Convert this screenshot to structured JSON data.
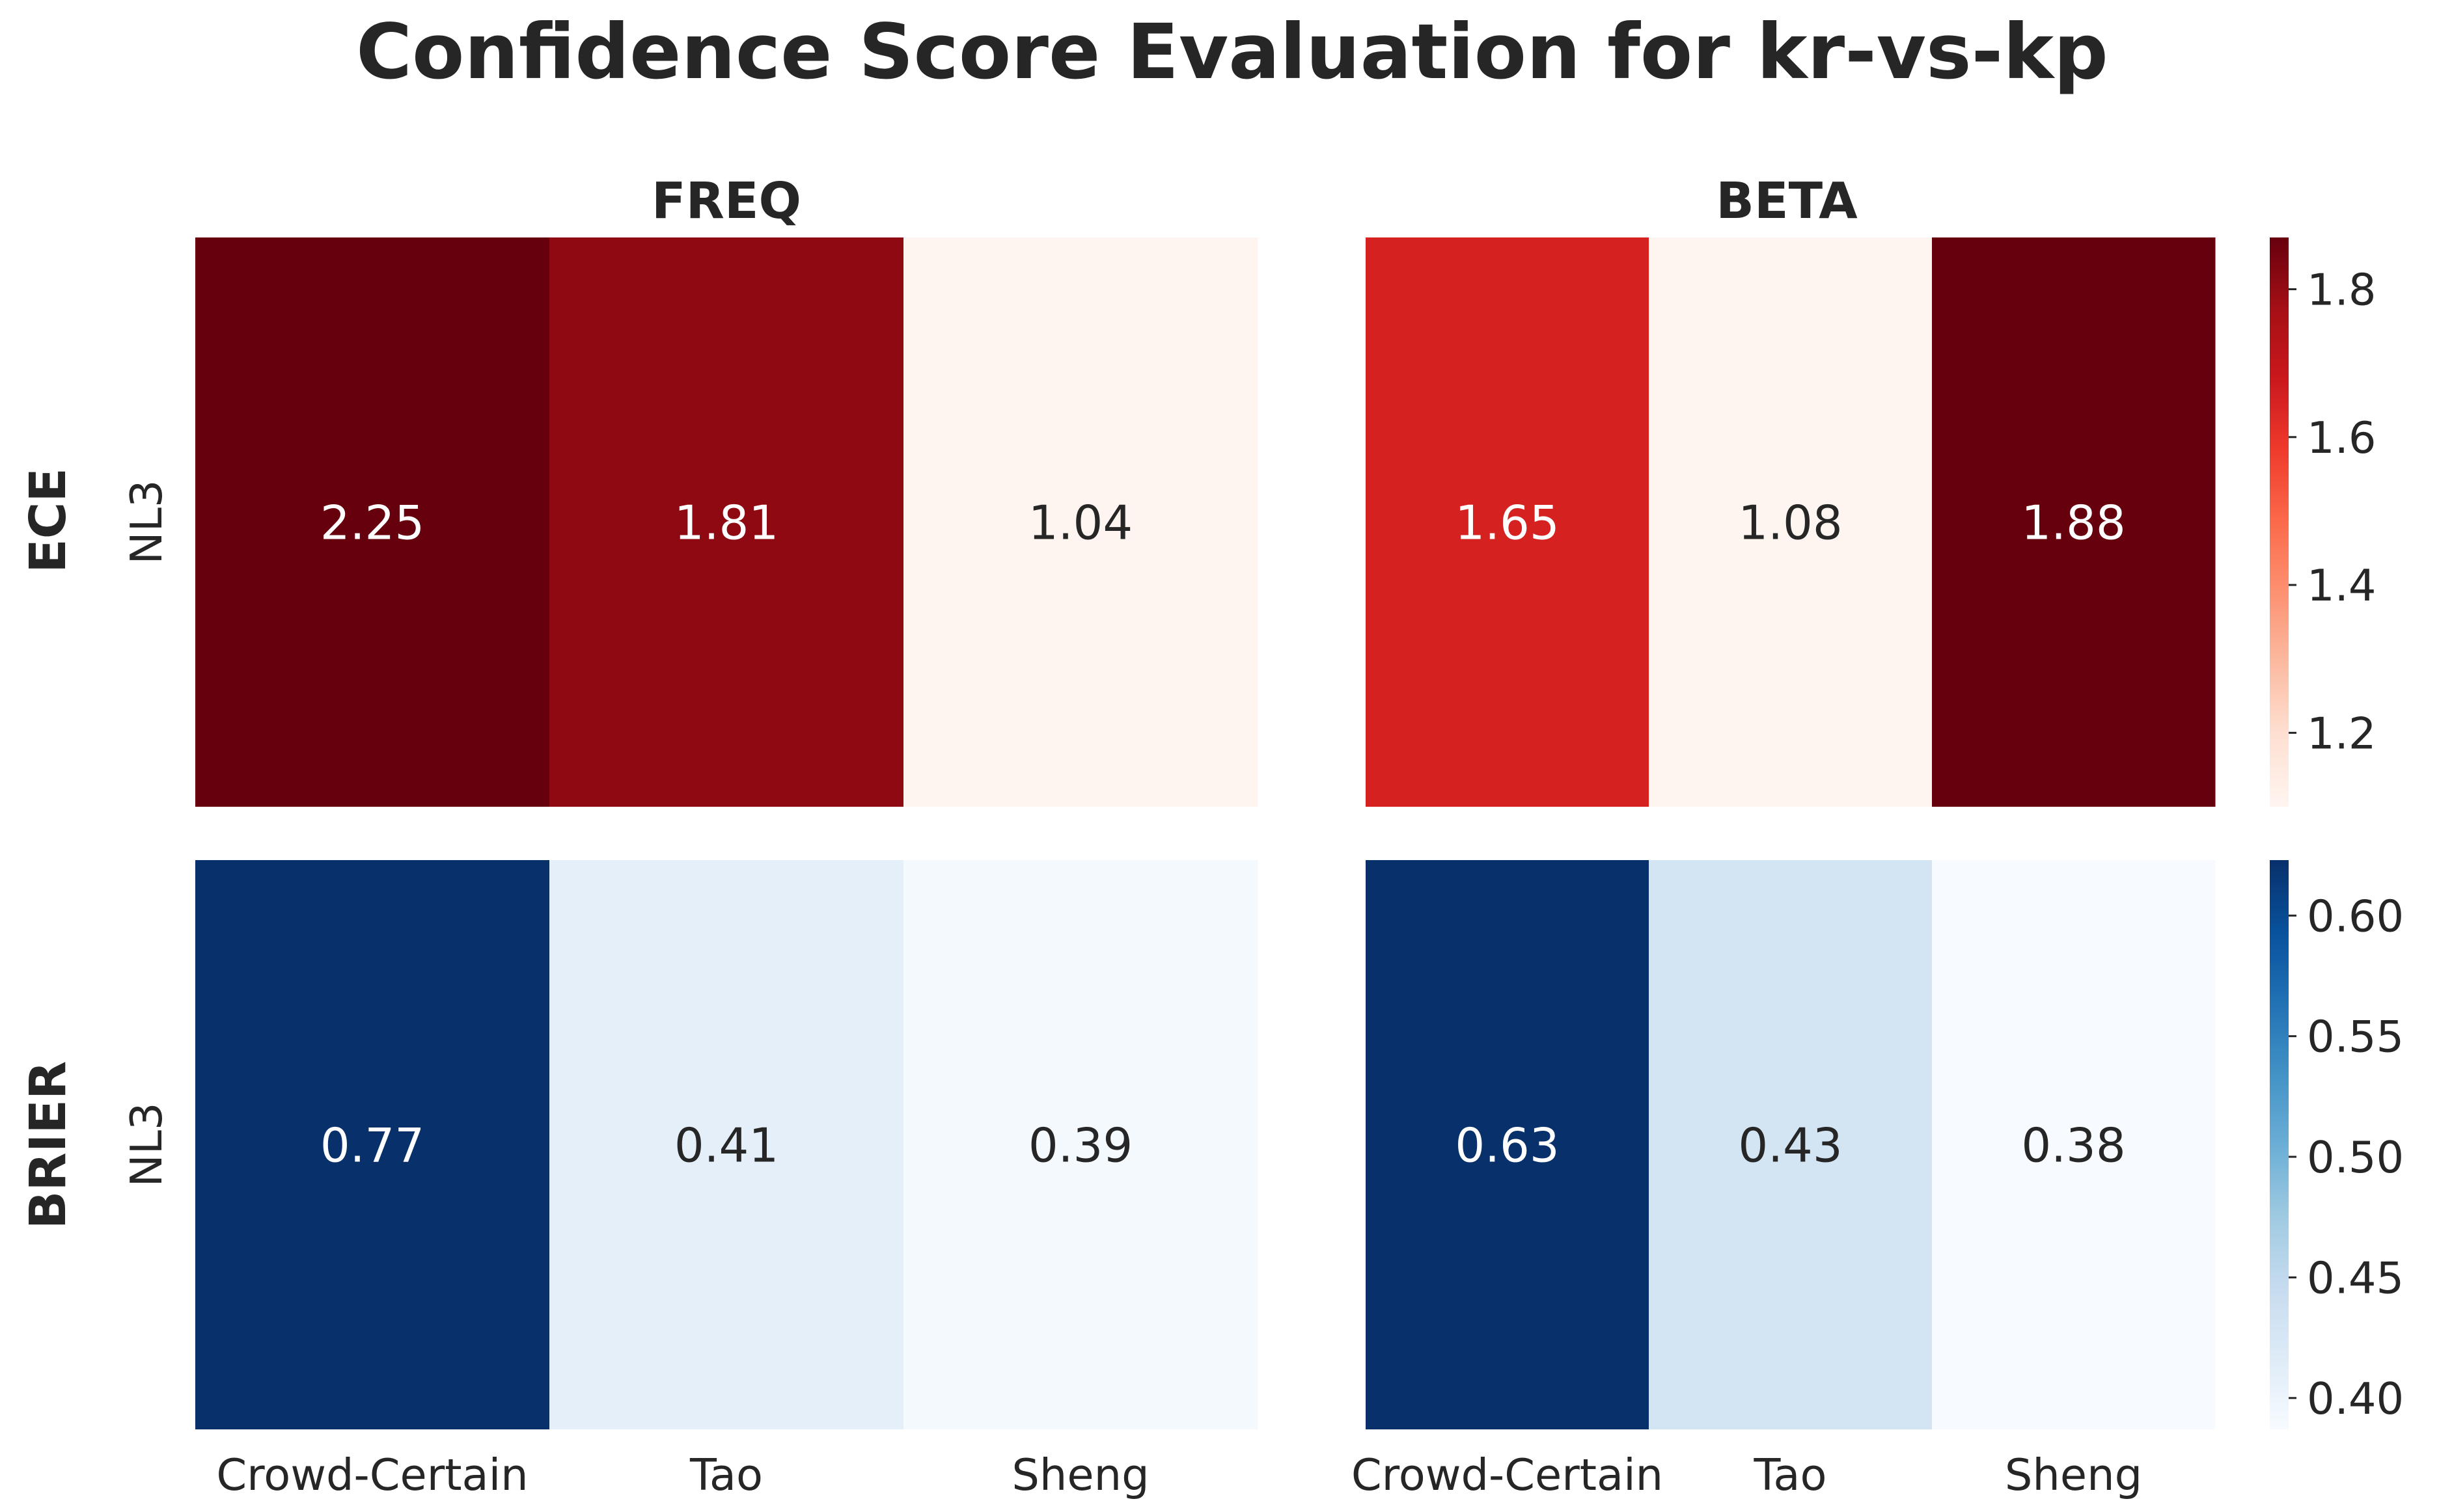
{
  "chart_data": {
    "type": "heatmap",
    "title": "Confidence Score Evaluation for kr-vs-kp",
    "columns": [
      "FREQ",
      "BETA"
    ],
    "rows": [
      "ECE",
      "BRIER"
    ],
    "y_tick": "NL3",
    "categories": [
      "Crowd-Certain",
      "Tao",
      "Sheng"
    ],
    "panels": [
      {
        "row": "ECE",
        "column": "FREQ",
        "cmap": "Reds",
        "values": [
          2.25,
          1.81,
          1.04
        ],
        "labels": [
          "2.25",
          "1.81",
          "1.04"
        ]
      },
      {
        "row": "ECE",
        "column": "BETA",
        "cmap": "Reds",
        "values": [
          1.65,
          1.08,
          1.88
        ],
        "labels": [
          "1.65",
          "1.08",
          "1.88"
        ]
      },
      {
        "row": "BRIER",
        "column": "FREQ",
        "cmap": "Blues",
        "values": [
          0.77,
          0.41,
          0.39
        ],
        "labels": [
          "0.77",
          "0.41",
          "0.39"
        ]
      },
      {
        "row": "BRIER",
        "column": "BETA",
        "cmap": "Blues",
        "values": [
          0.63,
          0.43,
          0.38
        ],
        "labels": [
          "0.63",
          "0.43",
          "0.38"
        ]
      }
    ],
    "colorbars": [
      {
        "row": "ECE",
        "cmap": "Reds",
        "range": [
          1.1,
          1.87
        ],
        "ticks": [
          "1.2",
          "1.4",
          "1.6",
          "1.8"
        ]
      },
      {
        "row": "BRIER",
        "cmap": "Blues",
        "range": [
          0.387,
          0.623
        ],
        "ticks": [
          "0.40",
          "0.45",
          "0.50",
          "0.55",
          "0.60"
        ]
      }
    ],
    "colors": {
      "Reds": [
        "#fff5f0",
        "#fee0d2",
        "#fcbba1",
        "#fc9272",
        "#fb6a4a",
        "#ef3b2c",
        "#cb181d",
        "#a50f15",
        "#67000d"
      ],
      "Blues": [
        "#f7fbff",
        "#deebf7",
        "#c6dbef",
        "#9ecae1",
        "#6baed6",
        "#4292c6",
        "#2171b5",
        "#08519c",
        "#08306b"
      ]
    }
  }
}
